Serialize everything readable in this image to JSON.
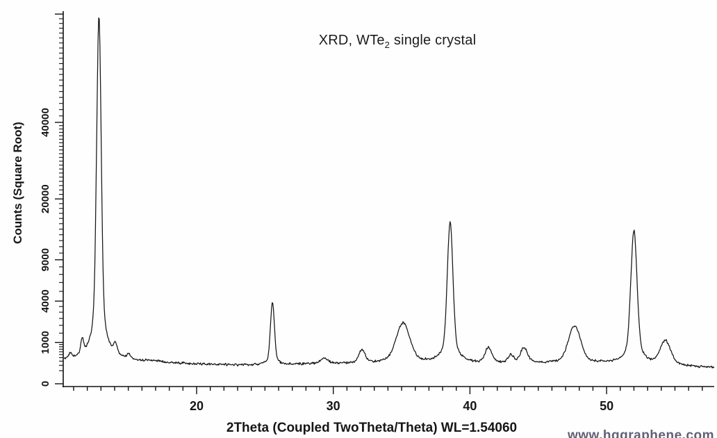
{
  "chart_data": {
    "type": "line",
    "title": {
      "prefix": "XRD, WTe",
      "sub": "2",
      "suffix": " single crystal"
    },
    "xlabel": "2Theta (Coupled TwoTheta/Theta) WL=1.54060",
    "ylabel": "Counts (Square Root)",
    "x_axis": {
      "min": 10.3,
      "max": 57.9,
      "major_ticks": [
        20,
        30,
        40,
        50
      ],
      "minor_tick_step_deg": 1
    },
    "y_axis": {
      "scale": "square-root",
      "min": 0,
      "max": 81000,
      "labeled_ticks": [
        0,
        1000,
        4000,
        9000,
        20000,
        40000
      ],
      "unlabeled_major_tick": 80000,
      "minor_tick_ranges": [
        [
          100,
          900,
          100
        ],
        [
          1500,
          3500,
          500
        ],
        [
          5000,
          8000,
          1000
        ],
        [
          10000,
          19000,
          1000
        ],
        [
          21000,
          39000,
          1000
        ],
        [
          42000,
          78000,
          2000
        ]
      ]
    },
    "grid": false,
    "legend": false,
    "line_color": "#151515",
    "peaks": [
      {
        "two_theta": 10.75,
        "peak_counts": 470,
        "fwhm_deg": 0.25,
        "lorentz_fraction": 0.35
      },
      {
        "two_theta": 11.63,
        "peak_counts": 960,
        "fwhm_deg": 0.22,
        "lorentz_fraction": 0.35
      },
      {
        "two_theta": 12.85,
        "peak_counts": 79500,
        "fwhm_deg": 0.3,
        "lorentz_fraction": 0.25
      },
      {
        "two_theta": 14.05,
        "peak_counts": 700,
        "fwhm_deg": 0.35,
        "lorentz_fraction": 0.35
      },
      {
        "two_theta": 15.0,
        "peak_counts": 430,
        "fwhm_deg": 0.3,
        "lorentz_fraction": 0.35
      },
      {
        "two_theta": 25.55,
        "peak_counts": 3920,
        "fwhm_deg": 0.28,
        "lorentz_fraction": 0.3
      },
      {
        "two_theta": 29.35,
        "peak_counts": 385,
        "fwhm_deg": 0.6,
        "lorentz_fraction": 0.35
      },
      {
        "two_theta": 32.1,
        "peak_counts": 660,
        "fwhm_deg": 0.5,
        "lorentz_fraction": 0.35
      },
      {
        "two_theta": 35.1,
        "peak_counts": 2150,
        "fwhm_deg": 1.0,
        "lorentz_fraction": 0.35
      },
      {
        "two_theta": 38.55,
        "peak_counts": 15400,
        "fwhm_deg": 0.38,
        "lorentz_fraction": 0.3
      },
      {
        "two_theta": 41.35,
        "peak_counts": 770,
        "fwhm_deg": 0.5,
        "lorentz_fraction": 0.35
      },
      {
        "two_theta": 43.0,
        "peak_counts": 475,
        "fwhm_deg": 0.45,
        "lorentz_fraction": 0.35
      },
      {
        "two_theta": 43.95,
        "peak_counts": 760,
        "fwhm_deg": 0.55,
        "lorentz_fraction": 0.35
      },
      {
        "two_theta": 47.65,
        "peak_counts": 1980,
        "fwhm_deg": 0.9,
        "lorentz_fraction": 0.35
      },
      {
        "two_theta": 52.0,
        "peak_counts": 13800,
        "fwhm_deg": 0.42,
        "lorentz_fraction": 0.3
      },
      {
        "two_theta": 54.3,
        "peak_counts": 1070,
        "fwhm_deg": 0.8,
        "lorentz_fraction": 0.35
      }
    ],
    "baseline_counts": [
      [
        10.3,
        310
      ],
      [
        11,
        300
      ],
      [
        12,
        305
      ],
      [
        13,
        305
      ],
      [
        14,
        295
      ],
      [
        15,
        285
      ],
      [
        16,
        285
      ],
      [
        17,
        285
      ],
      [
        18,
        250
      ],
      [
        19,
        235
      ],
      [
        20,
        228
      ],
      [
        21,
        218
      ],
      [
        22,
        208
      ],
      [
        23,
        195
      ],
      [
        24,
        200
      ],
      [
        25,
        205
      ],
      [
        26,
        205
      ],
      [
        27,
        212
      ],
      [
        28,
        222
      ],
      [
        29,
        232
      ],
      [
        30,
        240
      ],
      [
        31,
        240
      ],
      [
        32,
        238
      ],
      [
        33,
        246
      ],
      [
        34,
        252
      ],
      [
        35,
        255
      ],
      [
        36,
        258
      ],
      [
        37,
        252
      ],
      [
        38,
        248
      ],
      [
        39,
        244
      ],
      [
        40,
        238
      ],
      [
        41,
        240
      ],
      [
        42,
        245
      ],
      [
        43,
        245
      ],
      [
        44,
        248
      ],
      [
        45,
        244
      ],
      [
        46,
        238
      ],
      [
        47,
        230
      ],
      [
        48,
        228
      ],
      [
        49,
        228
      ],
      [
        50,
        230
      ],
      [
        51,
        215
      ],
      [
        52,
        208
      ],
      [
        53,
        200
      ],
      [
        54,
        190
      ],
      [
        55,
        178
      ],
      [
        56,
        165
      ],
      [
        57,
        155
      ],
      [
        57.9,
        148
      ]
    ],
    "noise_sqrt_counts": 1.15
  },
  "watermark": "www.hqgraphene.com",
  "colors": {
    "background": "#fefefe",
    "axis": "#111111",
    "curve": "#151515",
    "text": "#161616",
    "watermark": "#45455f"
  }
}
